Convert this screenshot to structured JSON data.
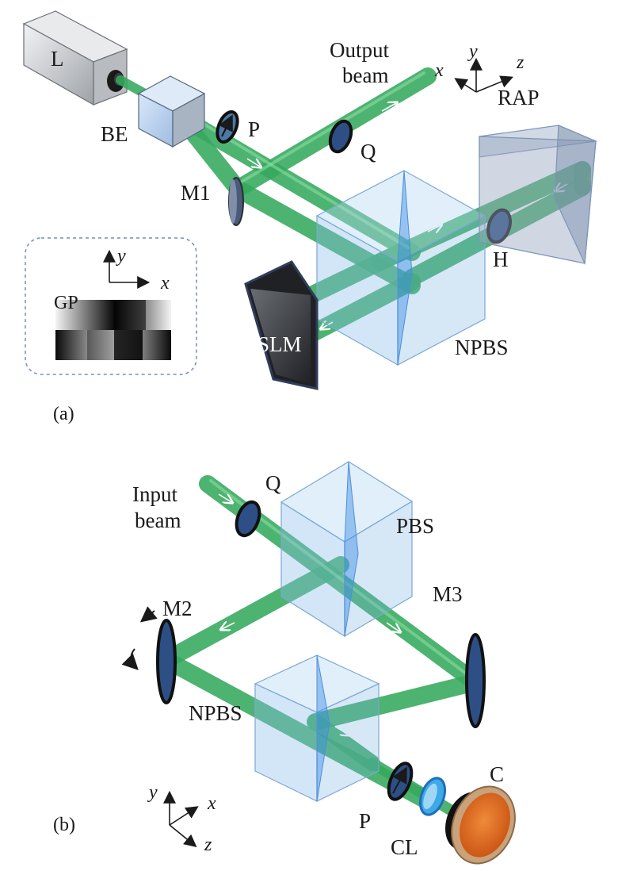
{
  "panel_a": {
    "panel_label": "(a)",
    "labels": {
      "laser": "L",
      "beam_expander": "BE",
      "polarizer": "P",
      "mirror": "M1",
      "output_beam_line1": "Output",
      "output_beam_line2": "beam",
      "quarter_wave_plate": "Q",
      "right_angle_prism": "RAP",
      "half_wave_plate": "H",
      "slm": "SLM",
      "beam_splitter": "NPBS"
    },
    "axes": {
      "x": "x",
      "y": "y",
      "z": "z"
    },
    "inset": {
      "label": "GP",
      "axis_x": "x",
      "axis_y": "y"
    }
  },
  "panel_b": {
    "panel_label": "(b)",
    "labels": {
      "input_beam_line1": "Input",
      "input_beam_line2": "beam",
      "quarter_wave_plate": "Q",
      "polarizing_beam_splitter": "PBS",
      "mirror_2": "M2",
      "mirror_3": "M3",
      "beam_splitter": "NPBS",
      "polarizer": "P",
      "cylindrical_lens": "CL",
      "camera": "C"
    },
    "axes": {
      "x": "x",
      "y": "y",
      "z": "z"
    }
  },
  "colors": {
    "beam": "#34a85c",
    "cube": "#8cbeeb",
    "slm": "#3a3d42",
    "camera": "#e06a1e",
    "laser_body": "#c9ccd0"
  }
}
